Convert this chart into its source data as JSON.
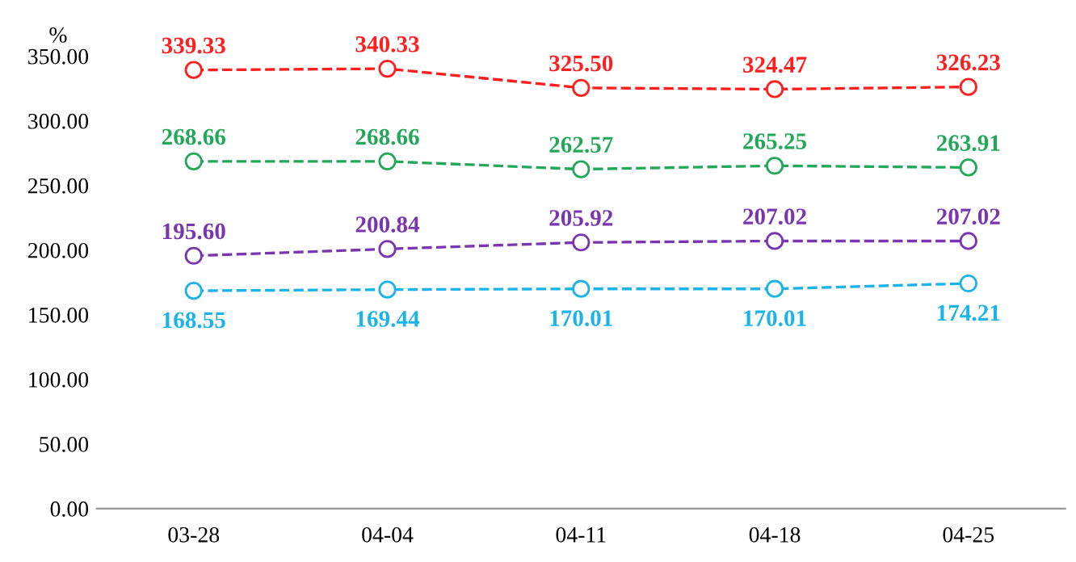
{
  "chart_data": {
    "type": "line",
    "ylabel": "%",
    "categories": [
      "03-28",
      "04-04",
      "04-11",
      "04-18",
      "04-25"
    ],
    "series": [
      {
        "color": "#ff1f1f",
        "values": [
          339.33,
          340.33,
          325.5,
          324.47,
          326.23
        ],
        "value_labels": [
          "339.33",
          "340.33",
          "325.50",
          "324.47",
          "326.23"
        ]
      },
      {
        "color": "#22a858",
        "values": [
          268.66,
          268.66,
          262.57,
          265.25,
          263.91
        ],
        "value_labels": [
          "268.66",
          "268.66",
          "262.57",
          "265.25",
          "263.91"
        ]
      },
      {
        "color": "#7a35b0",
        "values": [
          195.6,
          200.84,
          205.92,
          207.02,
          207.02
        ],
        "value_labels": [
          "195.60",
          "200.84",
          "205.92",
          "207.02",
          "207.02"
        ]
      },
      {
        "color": "#1ab3ea",
        "values": [
          168.55,
          169.44,
          170.01,
          170.01,
          174.21
        ],
        "value_labels": [
          "168.55",
          "169.44",
          "170.01",
          "170.01",
          "174.21"
        ]
      }
    ],
    "ylim": [
      0,
      350
    ],
    "yticks": [
      {
        "value": 0,
        "label": "0.00"
      },
      {
        "value": 50,
        "label": "50.00"
      },
      {
        "value": 100,
        "label": "100.00"
      },
      {
        "value": 150,
        "label": "150.00"
      },
      {
        "value": 200,
        "label": "200.00"
      },
      {
        "value": 250,
        "label": "250.00"
      },
      {
        "value": 300,
        "label": "300.00"
      },
      {
        "value": 350,
        "label": "350.00"
      }
    ],
    "grid": false,
    "legend": false,
    "marker": "circle",
    "line_style": "dashed"
  }
}
